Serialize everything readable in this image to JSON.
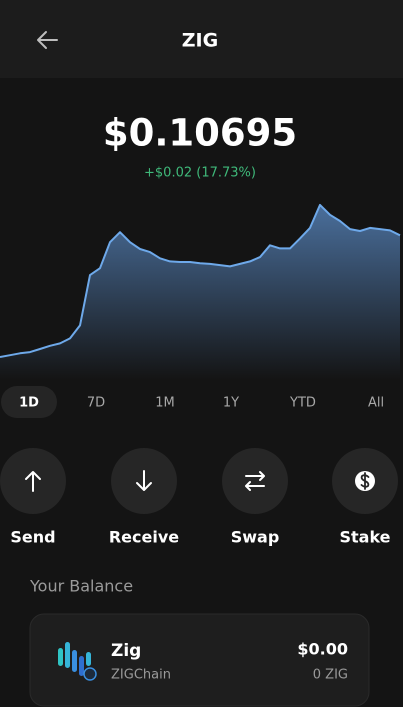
{
  "header": {
    "title": "ZIG"
  },
  "price": {
    "value": "$0.10695",
    "change": "+$0.02 (17.73%)"
  },
  "chart_data": {
    "type": "area",
    "color": "#6ea9ea",
    "values": [
      0.087,
      0.0873,
      0.0876,
      0.0878,
      0.0883,
      0.0888,
      0.0892,
      0.09,
      0.0921,
      0.1002,
      0.1013,
      0.1055,
      0.1071,
      0.1055,
      0.1044,
      0.1039,
      0.1029,
      0.1024,
      0.1023,
      0.1023,
      0.1021,
      0.102,
      0.1018,
      0.1016,
      0.102,
      0.1024,
      0.1031,
      0.105,
      0.1045,
      0.1045,
      0.1061,
      0.1078,
      0.1115,
      0.1099,
      0.1089,
      0.1076,
      0.1073,
      0.1078,
      0.1076,
      0.1074,
      0.1066
    ],
    "ylim": [
      0.0833,
      0.1139
    ]
  },
  "ranges": [
    "1D",
    "7D",
    "1M",
    "1Y",
    "YTD",
    "All"
  ],
  "selected_range": "1D",
  "actions": [
    "Send",
    "Receive",
    "Swap",
    "Stake"
  ],
  "balance": {
    "title": "Your Balance",
    "asset": {
      "name": "Zig",
      "chain": "ZIGChain",
      "value": "$0.00",
      "amount": "0 ZIG"
    }
  }
}
